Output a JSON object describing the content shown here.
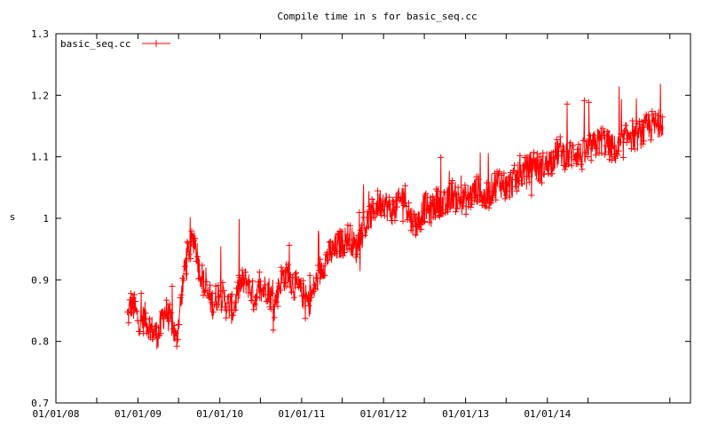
{
  "chart_data": {
    "type": "line",
    "title": "Compile time in s for basic_seq.cc",
    "xlabel": "",
    "ylabel": "s",
    "x_tick_labels": [
      "01/01/08",
      "01/01/09",
      "01/01/10",
      "01/01/11",
      "01/01/12",
      "01/01/13",
      "01/01/14"
    ],
    "xlim": [
      "2008-01-01",
      "2015-10-01"
    ],
    "ylim": [
      0.7,
      1.3
    ],
    "y_ticks": [
      0.7,
      0.8,
      0.9,
      1.0,
      1.1,
      1.2,
      1.3
    ],
    "y_tick_labels": [
      "0.7",
      "0.8",
      "0.9",
      "1",
      "1.1",
      "1.2",
      "1.3"
    ],
    "legend_position": "top-left",
    "grid": false,
    "series": [
      {
        "name": "basic_seq.cc",
        "color": "#ff0000",
        "marker": "plus",
        "x": [
          "2008-11-15",
          "2008-12-01",
          "2008-12-20",
          "2009-01-10",
          "2009-02-01",
          "2009-03-01",
          "2009-04-01",
          "2009-05-01",
          "2009-06-01",
          "2009-06-20",
          "2009-07-10",
          "2009-08-01",
          "2009-08-20",
          "2009-09-10",
          "2009-10-01",
          "2009-11-01",
          "2009-12-01",
          "2010-01-01",
          "2010-02-01",
          "2010-03-01",
          "2010-04-01",
          "2010-05-01",
          "2010-06-01",
          "2010-07-01",
          "2010-08-01",
          "2010-09-01",
          "2010-10-01",
          "2010-11-01",
          "2010-12-01",
          "2011-01-01",
          "2011-02-01",
          "2011-03-01",
          "2011-04-01",
          "2011-05-01",
          "2011-06-01",
          "2011-07-01",
          "2011-08-01",
          "2011-09-01",
          "2011-10-01",
          "2011-11-01",
          "2011-12-01",
          "2012-01-01",
          "2012-02-01",
          "2012-03-01",
          "2012-04-01",
          "2012-05-01",
          "2012-06-01",
          "2012-07-01",
          "2012-08-01",
          "2012-09-01",
          "2012-10-01",
          "2012-11-01",
          "2012-12-01",
          "2013-01-01",
          "2013-02-01",
          "2013-03-01",
          "2013-04-01",
          "2013-05-01",
          "2013-06-01",
          "2013-07-01",
          "2013-08-01",
          "2013-09-01",
          "2013-10-01",
          "2013-11-01",
          "2013-12-01",
          "2014-01-01",
          "2014-02-01",
          "2014-03-01",
          "2014-04-01",
          "2014-05-01",
          "2014-06-01",
          "2014-07-01",
          "2014-08-01",
          "2014-09-01",
          "2014-10-01",
          "2014-11-01",
          "2014-12-01",
          "2015-01-01",
          "2015-02-01",
          "2015-03-01",
          "2015-04-01",
          "2015-05-01",
          "2015-06-01"
        ],
        "values": [
          0.84,
          0.86,
          0.85,
          0.83,
          0.84,
          0.82,
          0.81,
          0.85,
          0.83,
          0.8,
          0.86,
          0.93,
          0.95,
          0.97,
          0.92,
          0.88,
          0.86,
          0.88,
          0.86,
          0.85,
          0.89,
          0.9,
          0.87,
          0.88,
          0.89,
          0.86,
          0.9,
          0.91,
          0.89,
          0.88,
          0.86,
          0.89,
          0.92,
          0.94,
          0.95,
          0.96,
          0.97,
          0.95,
          0.98,
          1.0,
          1.02,
          1.03,
          1.01,
          1.02,
          1.04,
          1.0,
          0.99,
          1.02,
          1.01,
          1.03,
          1.02,
          1.04,
          1.03,
          1.03,
          1.04,
          1.05,
          1.03,
          1.05,
          1.06,
          1.05,
          1.06,
          1.07,
          1.08,
          1.09,
          1.08,
          1.09,
          1.1,
          1.11,
          1.1,
          1.11,
          1.1,
          1.11,
          1.12,
          1.13,
          1.12,
          1.11,
          1.12,
          1.14,
          1.13,
          1.14,
          1.15,
          1.15,
          1.16
        ]
      }
    ]
  }
}
